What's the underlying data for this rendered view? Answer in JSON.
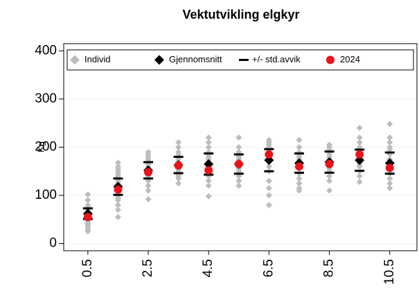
{
  "chart_data": {
    "type": "scatter",
    "title": "Vektutvikling elgkyr",
    "y_label": "Kg",
    "xlim": [
      -0.3,
      11.4
    ],
    "xticks": [
      0.5,
      2.5,
      4.5,
      6.5,
      8.5,
      10.5
    ],
    "ylim": [
      -15,
      415
    ],
    "yticks": [
      0,
      100,
      200,
      300,
      400
    ],
    "grid": true,
    "legend": "top",
    "series": [
      {
        "name": "Individ",
        "color": "#bdbdbd",
        "marker": "diamond",
        "x": [
          0.5,
          0.5,
          0.5,
          0.5,
          0.5,
          0.5,
          0.5,
          0.5,
          0.5,
          0.5,
          0.5,
          0.5,
          0.5,
          0.5,
          0.5,
          0.5,
          0.5,
          0.5,
          0.5,
          1.5,
          1.5,
          1.5,
          1.5,
          1.5,
          1.5,
          1.5,
          1.5,
          1.5,
          1.5,
          1.5,
          1.5,
          1.5,
          1.5,
          1.5,
          1.5,
          1.5,
          1.5,
          1.5,
          2.5,
          2.5,
          2.5,
          2.5,
          2.5,
          2.5,
          2.5,
          2.5,
          2.5,
          2.5,
          2.5,
          2.5,
          2.5,
          2.5,
          2.5,
          2.5,
          3.5,
          3.5,
          3.5,
          3.5,
          3.5,
          3.5,
          3.5,
          3.5,
          3.5,
          3.5,
          3.5,
          3.5,
          3.5,
          3.5,
          3.5,
          4.5,
          4.5,
          4.5,
          4.5,
          4.5,
          4.5,
          4.5,
          4.5,
          4.5,
          4.5,
          4.5,
          4.5,
          4.5,
          4.5,
          4.5,
          4.5,
          4.5,
          5.5,
          5.5,
          5.5,
          5.5,
          5.5,
          5.5,
          5.5,
          5.5,
          5.5,
          5.5,
          5.5,
          5.5,
          5.5,
          5.5,
          5.5,
          6.5,
          6.5,
          6.5,
          6.5,
          6.5,
          6.5,
          6.5,
          6.5,
          6.5,
          6.5,
          6.5,
          6.5,
          6.5,
          6.5,
          7.5,
          7.5,
          7.5,
          7.5,
          7.5,
          7.5,
          7.5,
          7.5,
          7.5,
          7.5,
          7.5,
          7.5,
          7.5,
          7.5,
          7.5,
          8.5,
          8.5,
          8.5,
          8.5,
          8.5,
          8.5,
          8.5,
          8.5,
          8.5,
          8.5,
          8.5,
          8.5,
          8.5,
          8.5,
          8.5,
          9.5,
          9.5,
          9.5,
          9.5,
          9.5,
          9.5,
          9.5,
          9.5,
          9.5,
          9.5,
          9.5,
          9.5,
          9.5,
          9.5,
          9.5,
          10.5,
          10.5,
          10.5,
          10.5,
          10.5,
          10.5,
          10.5,
          10.5,
          10.5,
          10.5,
          10.5,
          10.5,
          10.5,
          10.5,
          10.5
        ],
        "values": [
          25,
          30,
          35,
          38,
          40,
          42,
          45,
          48,
          50,
          52,
          55,
          58,
          60,
          65,
          70,
          75,
          80,
          90,
          102,
          55,
          70,
          80,
          90,
          95,
          100,
          105,
          110,
          115,
          120,
          125,
          130,
          135,
          140,
          145,
          150,
          155,
          160,
          168,
          92,
          110,
          120,
          130,
          135,
          140,
          145,
          150,
          155,
          160,
          165,
          170,
          175,
          180,
          185,
          190,
          125,
          135,
          140,
          145,
          150,
          155,
          160,
          165,
          170,
          175,
          180,
          185,
          190,
          200,
          210,
          98,
          120,
          130,
          140,
          145,
          150,
          155,
          160,
          165,
          170,
          175,
          180,
          185,
          190,
          200,
          210,
          220,
          120,
          130,
          140,
          145,
          150,
          155,
          160,
          165,
          170,
          175,
          180,
          185,
          190,
          200,
          220,
          80,
          100,
          115,
          130,
          150,
          160,
          170,
          180,
          190,
          195,
          200,
          205,
          210,
          215,
          110,
          115,
          125,
          135,
          145,
          155,
          160,
          165,
          170,
          175,
          180,
          185,
          190,
          200,
          215,
          110,
          130,
          140,
          150,
          155,
          160,
          165,
          170,
          175,
          180,
          185,
          190,
          195,
          200,
          205,
          128,
          140,
          150,
          160,
          165,
          170,
          175,
          180,
          185,
          190,
          195,
          200,
          210,
          220,
          240,
          115,
          125,
          135,
          145,
          155,
          160,
          165,
          170,
          175,
          185,
          195,
          200,
          210,
          220,
          248
        ]
      },
      {
        "name": "Gjennomsnitt",
        "color": "#000000",
        "marker": "diamond",
        "x": [
          0.5,
          1.5,
          2.5,
          3.5,
          4.5,
          5.5,
          6.5,
          7.5,
          8.5,
          9.5,
          10.5
        ],
        "values": [
          62,
          118,
          152,
          163,
          165,
          165,
          173,
          167,
          169,
          173,
          167
        ]
      },
      {
        "name": "+/- std.avvik",
        "color": "#000000",
        "marker": "dash",
        "error": [
          11,
          17,
          17,
          17,
          22,
          20,
          23,
          20,
          22,
          22,
          22
        ]
      },
      {
        "name": "2024",
        "color": "#e8141b",
        "marker": "circle",
        "x": [
          0.5,
          1.5,
          2.5,
          3.5,
          4.5,
          5.5,
          6.5,
          7.5,
          8.5,
          9.5,
          10.5
        ],
        "values": [
          55,
          112,
          148,
          162,
          152,
          165,
          185,
          160,
          165,
          185,
          157
        ]
      }
    ]
  }
}
